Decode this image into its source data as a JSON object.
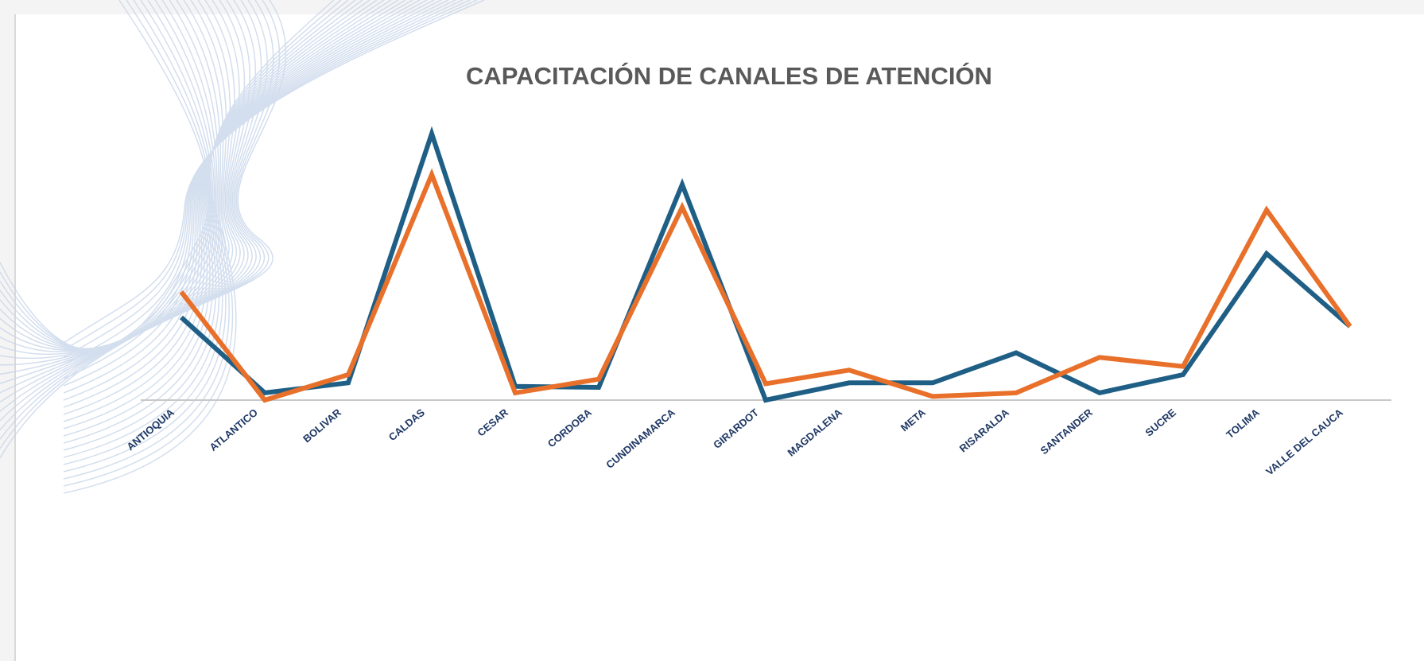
{
  "chart_data": {
    "type": "line",
    "title": "CAPACITACIÓN DE CANALES DE ATENCIÓN",
    "categories": [
      "ANTIOQUIA",
      "ATLANTICO",
      "BOLIVAR",
      "CALDAS",
      "CESAR",
      "CORDOBA",
      "CUNDINAMARCA",
      "GIRARDOT",
      "MAGDALENA",
      "META",
      "RISARALDA",
      "SANTANDER",
      "SUCRE",
      "TOLIMA",
      "VALLE DEL CAUCA"
    ],
    "series": [
      {
        "color": "#1f5f86",
        "values": [
          91,
          8,
          19,
          293,
          15,
          14,
          237,
          0,
          19,
          19,
          52,
          8,
          28,
          161,
          81
        ]
      },
      {
        "color": "#e8702a",
        "values": [
          119,
          0,
          28,
          248,
          8,
          23,
          212,
          18,
          33,
          4,
          8,
          47,
          37,
          209,
          81
        ]
      }
    ],
    "grid": false
  }
}
